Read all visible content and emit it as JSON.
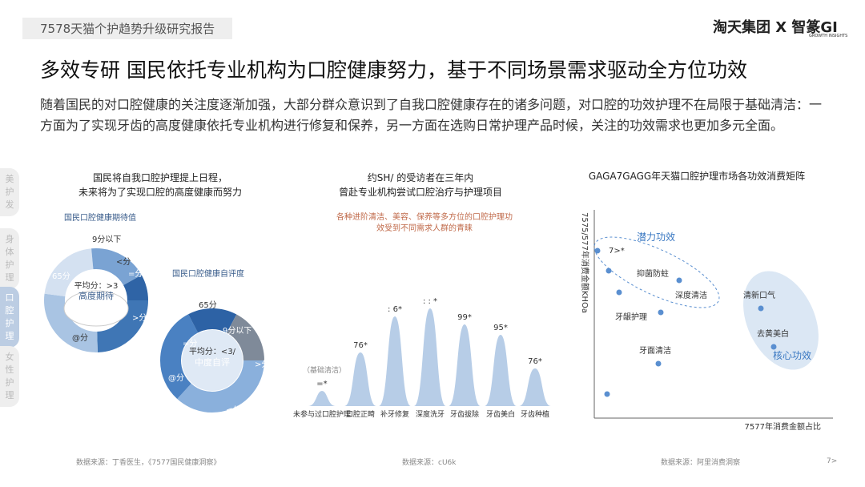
{
  "header": {
    "report_tag": "7578天猫个护趋势升级研究报告",
    "logo_main": "淘天集团 X 智篆GI",
    "logo_sub": "GROWTH INSIGHTS"
  },
  "title": "多效专研 国民依托专业机构为口腔健康努力，基于不同场景需求驱动全方位功效",
  "intro": "随着国民的对口腔健康的关注度逐渐加强，大部分群众意识到了自我口腔健康存在的诸多问题，对口腔的功效护理不在局限于基础清洁：一方面为了实现牙齿的高度健康依托专业机构进行修复和保养，另一方面在选购日常护理产品时候，关注的功效需求也更加多元全面。",
  "side_nav": [
    "美护发",
    "身体护理",
    "口腔护理",
    "女性护理"
  ],
  "panel1": {
    "title_lines": [
      "国民将自我口腔护理提上日程，",
      "未来将为了实现口腔的高度健康而努力"
    ],
    "donut1": {
      "label": "国民口腔健康期待值",
      "segments": [
        "9分以下",
        "<分",
        "=分",
        "65分",
        ">分",
        "@分"
      ],
      "avg": "平均分：>3",
      "desc": "高度期待"
    },
    "donut2": {
      "label": "国民口腔健康自评度",
      "segments": [
        "65分",
        "9分以下",
        "=分",
        ">分",
        "@分",
        "<分"
      ],
      "avg": "平均分：<3/",
      "desc": "中度自评"
    }
  },
  "panel2": {
    "title_lines": [
      "约SH/ 的受访者在三年内",
      "曾赴专业机构尝试口腔治疗与护理项目"
    ],
    "subtitle_lines": [
      "各种进阶清洁、美容、保养等多方位的口腔护理功",
      "效受到不同需求人群的青睐"
    ],
    "note": "（基础清洁）",
    "categories": [
      "未参与过口腔护理",
      "口腔正畸",
      "补牙修复",
      "深度洗牙",
      "牙齿拔除",
      "牙齿美白",
      "牙齿种植"
    ],
    "value_labels": [
      "=*",
      "76*",
      ": 6*",
      ": : *",
      "99*",
      "95*",
      "76*"
    ]
  },
  "panel3": {
    "title": "GAGA7GAGG年天猫口腔护理市场各功效消费矩阵",
    "y_label": "7575/577年消费金额KHOa",
    "x_label": "7577年消费金额占比",
    "group_potential": "潜力功效",
    "group_core": "核心功效",
    "points": [
      "7>*",
      "抑菌防蛀",
      "深度清洁",
      "牙龈护理",
      "牙面清洁",
      "清新口气",
      "去黄美白"
    ]
  },
  "footer": {
    "sources": [
      "数据来源：丁香医生，《7577国民健康洞察》",
      "数据来源：cU6k",
      "数据来源：阿里消费洞察"
    ],
    "page": "7>"
  }
}
